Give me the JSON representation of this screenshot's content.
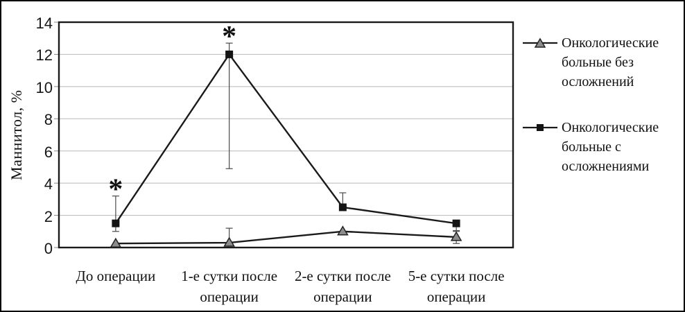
{
  "figure": {
    "background": "#ffffff",
    "border_color": "#000000"
  },
  "chart_data": {
    "type": "line",
    "title": "",
    "ylabel": "Маннитол, %",
    "xlabel": "",
    "ylim": [
      0,
      14
    ],
    "yticks": [
      0,
      2,
      4,
      6,
      8,
      10,
      12,
      14
    ],
    "grid": true,
    "legend_position": "right",
    "significance_symbol": "*",
    "categories": [
      "До операции",
      "1-е сутки после операции",
      "2-е сутки после операции",
      "5-е сутки после операции"
    ],
    "series": [
      {
        "name": "Онкологические больные без осложнений",
        "marker": "triangle",
        "marker_fill": "#8c8c8c",
        "values": [
          0.25,
          0.3,
          1.0,
          0.65
        ],
        "err_low": [
          0,
          0,
          0,
          0.4
        ],
        "err_high": [
          0,
          0.9,
          0,
          0.4
        ],
        "significant": [
          false,
          false,
          false,
          false
        ]
      },
      {
        "name": "Онкологические больные с осложнениями",
        "marker": "square",
        "marker_fill": "#141414",
        "values": [
          1.5,
          12,
          2.5,
          1.5
        ],
        "err_low": [
          0.5,
          7.1,
          0,
          0.5
        ],
        "err_high": [
          1.7,
          0.7,
          0.9,
          0
        ],
        "significant": [
          true,
          true,
          false,
          false
        ]
      }
    ],
    "colors": {
      "line": "#1a1a1a",
      "grid": "#b8b8b8",
      "error_bar": "#4a4a4a",
      "tick": "#888888"
    }
  },
  "legend": {
    "items": [
      {
        "label": "Онкологические больные без осложнений",
        "marker": "triangle"
      },
      {
        "label": "Онкологические больные с осложнениями",
        "marker": "square"
      }
    ]
  }
}
